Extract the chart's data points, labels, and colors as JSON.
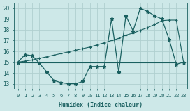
{
  "xlabel": "Humidex (Indice chaleur)",
  "background_color": "#cde8e8",
  "grid_color": "#b0d0d0",
  "line_color": "#1a6060",
  "xlim": [
    -0.5,
    23.5
  ],
  "ylim": [
    12.5,
    20.5
  ],
  "yticks": [
    13,
    14,
    15,
    16,
    17,
    18,
    19,
    20
  ],
  "xticks": [
    0,
    1,
    2,
    3,
    4,
    5,
    6,
    7,
    8,
    9,
    10,
    11,
    12,
    13,
    14,
    15,
    16,
    17,
    18,
    19,
    20,
    21,
    22,
    23
  ],
  "line1_x": [
    0,
    1,
    2,
    3,
    4,
    5,
    6,
    7,
    8,
    9,
    10,
    11,
    12,
    13,
    14,
    15,
    16,
    17,
    18,
    19,
    20,
    21,
    22,
    23
  ],
  "line1_y": [
    15.0,
    15.7,
    15.6,
    14.9,
    14.1,
    13.3,
    13.1,
    13.0,
    13.0,
    13.2,
    14.6,
    14.6,
    14.6,
    19.0,
    14.1,
    19.3,
    17.9,
    20.0,
    19.7,
    19.3,
    19.0,
    17.1,
    14.8,
    15.0
  ],
  "line2_x": [
    0,
    1,
    2,
    3,
    4,
    5,
    6,
    7,
    8,
    9,
    10,
    11,
    12,
    13,
    14,
    15,
    16,
    17,
    18,
    19,
    20,
    21,
    22,
    23
  ],
  "line2_y": [
    15.0,
    15.1,
    15.2,
    15.35,
    15.5,
    15.65,
    15.8,
    15.95,
    16.1,
    16.25,
    16.4,
    16.6,
    16.8,
    17.0,
    17.2,
    17.5,
    17.7,
    17.95,
    18.2,
    18.5,
    18.85,
    18.9,
    18.9,
    15.0
  ],
  "line3_x": [
    0,
    22
  ],
  "line3_y": [
    15.0,
    15.0
  ]
}
